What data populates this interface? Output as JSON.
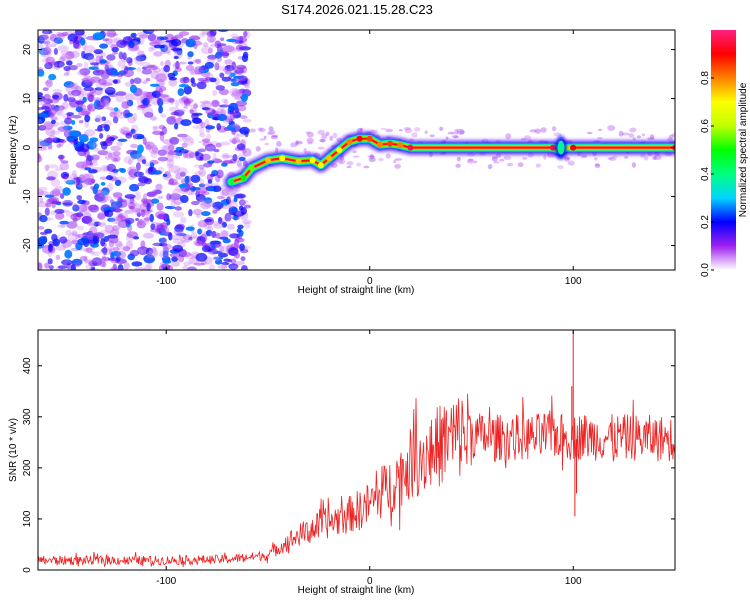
{
  "title": "S174.2026.021.15.28.C23",
  "chart_data": [
    {
      "type": "heatmap",
      "xlabel": "Height of straight line (km)",
      "ylabel": "Frequency (Hz)",
      "xlim": [
        -163,
        150
      ],
      "ylim": [
        -25,
        24
      ],
      "xticks": [
        -100,
        0,
        100
      ],
      "yticks": [
        -20,
        -10,
        0,
        10,
        20
      ],
      "colorbar": {
        "label": "Normalized spectral amplitude",
        "range": [
          0,
          1
        ],
        "ticks": [
          "0.0",
          "0.2",
          "0.4",
          "0.6",
          "0.8"
        ],
        "tick_values": [
          0,
          0.2,
          0.4,
          0.6,
          0.8
        ],
        "colors": [
          "#ffffff",
          "#a020f0",
          "#0000ff",
          "#00d5ff",
          "#00ff80",
          "#00ff00",
          "#c0ff00",
          "#ffff00",
          "#ff8000",
          "#ff0000",
          "#ff2080"
        ]
      },
      "noise_region": {
        "x_range": [
          -163,
          -60
        ],
        "f_range": [
          -25,
          24
        ],
        "level": 0.15
      },
      "ridge": [
        {
          "x": -68,
          "f": -7.0,
          "a": 0.45
        },
        {
          "x": -62,
          "f": -6.2,
          "a": 0.5
        },
        {
          "x": -58,
          "f": -4.2,
          "a": 0.55
        },
        {
          "x": -50,
          "f": -2.6,
          "a": 0.75
        },
        {
          "x": -43,
          "f": -2.2,
          "a": 0.7
        },
        {
          "x": -35,
          "f": -2.8,
          "a": 0.75
        },
        {
          "x": -28,
          "f": -2.6,
          "a": 0.7
        },
        {
          "x": -24,
          "f": -3.6,
          "a": 0.7
        },
        {
          "x": -20,
          "f": -2.2,
          "a": 0.75
        },
        {
          "x": -15,
          "f": -0.5,
          "a": 0.7
        },
        {
          "x": -10,
          "f": 1.2,
          "a": 0.8
        },
        {
          "x": -5,
          "f": 1.8,
          "a": 0.9
        },
        {
          "x": 0,
          "f": 1.8,
          "a": 0.85
        },
        {
          "x": 5,
          "f": 0.6,
          "a": 0.8
        },
        {
          "x": 10,
          "f": 0.8,
          "a": 0.85
        },
        {
          "x": 15,
          "f": 0.5,
          "a": 0.8
        },
        {
          "x": 20,
          "f": 0.0,
          "a": 0.95
        },
        {
          "x": 90,
          "f": 0.0,
          "a": 0.95
        },
        {
          "x": 93,
          "f": -0.5,
          "a": 0.55
        },
        {
          "x": 97,
          "f": 0.0,
          "a": 0.6
        },
        {
          "x": 100,
          "f": 0.0,
          "a": 0.9
        },
        {
          "x": 150,
          "f": 0.0,
          "a": 0.95
        }
      ]
    },
    {
      "type": "line",
      "xlabel": "Height of straight line (km)",
      "ylabel": "SNR (10 * v/v)",
      "xlim": [
        -163,
        150
      ],
      "ylim": [
        0,
        470
      ],
      "xticks": [
        -100,
        0,
        100
      ],
      "yticks": [
        0,
        100,
        200,
        300,
        400
      ],
      "color": "#ee2222",
      "series_trend": {
        "x": [
          -163,
          -140,
          -100,
          -70,
          -50,
          -40,
          -30,
          -20,
          -10,
          0,
          10,
          20,
          30,
          40,
          50,
          60,
          80,
          90,
          95,
          100,
          105,
          110,
          130,
          150
        ],
        "y": [
          18,
          18,
          18,
          20,
          28,
          55,
          75,
          90,
          105,
          125,
          160,
          200,
          225,
          250,
          260,
          255,
          255,
          262,
          255,
          255,
          258,
          255,
          255,
          252
        ]
      },
      "spikes": [
        {
          "x": 100,
          "y": 470
        },
        {
          "x": 100.8,
          "y": 105
        },
        {
          "x": 99.3,
          "y": 360
        },
        {
          "x": 101.6,
          "y": 150
        }
      ]
    }
  ]
}
